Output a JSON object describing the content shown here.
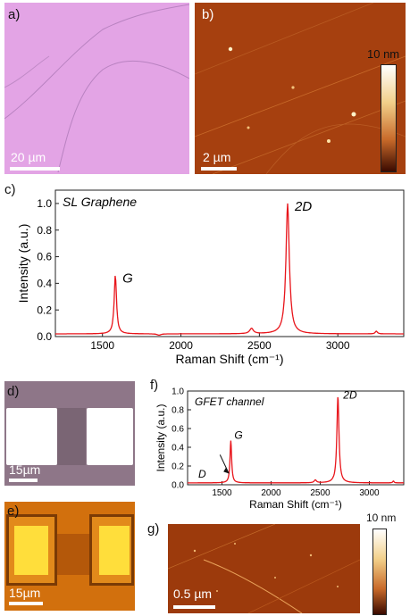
{
  "labels": {
    "a": "a)",
    "b": "b)",
    "c": "c)",
    "d": "d)",
    "e": "e)",
    "f": "f)",
    "g": "g)"
  },
  "panel_a": {
    "scale_text": "20 µm"
  },
  "panel_b": {
    "scale_text": "2 µm",
    "colorbar_label": "10 nm"
  },
  "panel_d": {
    "scale_text": "15µm"
  },
  "panel_e": {
    "scale_text": "15µm"
  },
  "panel_g": {
    "scale_text": "0.5 µm",
    "colorbar_label": "10 nm"
  },
  "colors": {
    "line": "#e8151b",
    "afm_dark": "#7a1c05",
    "afm_mid": "#a8400e",
    "optical_pink": "#e6a6e6"
  },
  "chart_data": [
    {
      "id": "c",
      "type": "line",
      "title": "SL Graphene",
      "xlabel": "Raman Shift (cm⁻¹)",
      "ylabel": "Intensity (a.u.)",
      "xlim": [
        1200,
        3420
      ],
      "ylim": [
        0,
        1.1
      ],
      "xticks": [
        "1500",
        "2000",
        "2500",
        "3000"
      ],
      "yticks": [
        "0.0",
        "0.2",
        "0.4",
        "0.6",
        "0.8",
        "1.0"
      ],
      "series": [
        {
          "peaks": [
            {
              "x": 1582,
              "y": 0.46,
              "w": 9
            },
            {
              "x": 1860,
              "y": 0.01,
              "w": 15
            },
            {
              "x": 2450,
              "y": 0.06,
              "w": 14
            },
            {
              "x": 2680,
              "y": 1.0,
              "w": 13
            },
            {
              "x": 3245,
              "y": 0.04,
              "w": 8
            }
          ],
          "baseline": 0.02
        }
      ],
      "annotations": [
        {
          "text": "G",
          "x": 1582,
          "y": 0.46
        },
        {
          "text": "2D",
          "x": 2680,
          "y": 1.0
        }
      ]
    },
    {
      "id": "f",
      "type": "line",
      "title": "GFET channel",
      "xlabel": "Raman Shift (cm⁻¹)",
      "ylabel": "Intensity (a.u.)",
      "xlim": [
        1150,
        3350
      ],
      "ylim": [
        0,
        1.0
      ],
      "xticks": [
        "1500",
        "2000",
        "2500",
        "3000"
      ],
      "yticks": [
        "0.0",
        "0.2",
        "0.4",
        "0.6",
        "0.8",
        "1.0"
      ],
      "series": [
        {
          "peaks": [
            {
              "x": 1350,
              "y": 0.02,
              "w": 15
            },
            {
              "x": 1590,
              "y": 0.47,
              "w": 10
            },
            {
              "x": 2450,
              "y": 0.05,
              "w": 14
            },
            {
              "x": 2680,
              "y": 0.94,
              "w": 13
            },
            {
              "x": 3245,
              "y": 0.04,
              "w": 8
            }
          ],
          "baseline": 0.02
        }
      ],
      "annotations": [
        {
          "text": "D",
          "x": 1350,
          "y": 0.02
        },
        {
          "text": "G",
          "x": 1590,
          "y": 0.47
        },
        {
          "text": "2D",
          "x": 2680,
          "y": 0.94
        }
      ]
    }
  ]
}
